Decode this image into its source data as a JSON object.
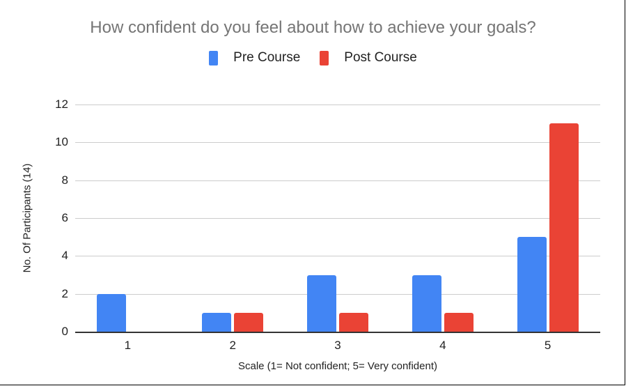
{
  "chart_data": {
    "type": "bar",
    "title": "How confident do you feel about how to achieve your goals?",
    "xlabel": "Scale (1= Not confident; 5= Very confident)",
    "ylabel": "No. Of Participants (14)",
    "categories": [
      "1",
      "2",
      "3",
      "4",
      "5"
    ],
    "series": [
      {
        "name": "Pre Course",
        "color": "#4285f4",
        "values": [
          2,
          1,
          3,
          3,
          5
        ]
      },
      {
        "name": "Post Course",
        "color": "#ea4335",
        "values": [
          0,
          1,
          1,
          1,
          11
        ]
      }
    ],
    "ylim": [
      0,
      12
    ],
    "yticks": [
      "0",
      "2",
      "4",
      "6",
      "8",
      "10",
      "12"
    ],
    "grid": true,
    "legend_position": "top"
  }
}
